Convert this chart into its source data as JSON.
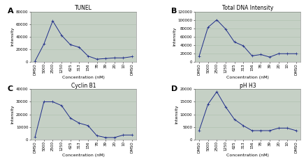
{
  "x_labels": [
    "DMSO",
    "5000",
    "2500",
    "1250",
    "625",
    "313",
    "156",
    "78",
    "39",
    "20",
    "10",
    "DMSO"
  ],
  "x_positions": [
    0,
    1,
    2,
    3,
    4,
    5,
    6,
    7,
    8,
    9,
    10,
    11
  ],
  "tunel": [
    1000,
    28000,
    65000,
    42000,
    27000,
    23000,
    9000,
    4000,
    5000,
    6000,
    6000,
    8000
  ],
  "total_dna": [
    13000,
    82000,
    100000,
    78000,
    47000,
    38000,
    14000,
    17000,
    11000,
    19000,
    19000,
    19000
  ],
  "cyclin_b1": [
    2000,
    30000,
    30000,
    27000,
    17000,
    13000,
    11000,
    3000,
    1500,
    1500,
    3500,
    3500
  ],
  "phh3": [
    3500,
    14000,
    19000,
    13000,
    8000,
    5500,
    3500,
    3500,
    3500,
    4500,
    4500,
    3500
  ],
  "titles": [
    "TUNEL",
    "Total DNA Intensity",
    "Cyclin B1",
    "pH H3"
  ],
  "panel_labels": [
    "A",
    "B",
    "C",
    "D"
  ],
  "ylabel": "Intensity",
  "xlabel": "Concentration (nM)",
  "line_color": "#1f2d8a",
  "marker": "+",
  "bg_color": "#c5d0c5",
  "grid_color": "#adbfad",
  "title_fontsize": 5.5,
  "label_fontsize": 4.5,
  "tick_fontsize": 4.0,
  "panel_label_fontsize": 8,
  "ylims": {
    "tunel": [
      0,
      80000
    ],
    "total_dna": [
      0,
      120000
    ],
    "cyclin_b1": [
      0,
      40000
    ],
    "phh3": [
      0,
      20000
    ]
  },
  "yticks": {
    "tunel": [
      0,
      20000,
      40000,
      60000,
      80000
    ],
    "total_dna": [
      0,
      20000,
      40000,
      60000,
      80000,
      100000,
      120000
    ],
    "cyclin_b1": [
      0,
      10000,
      20000,
      30000,
      40000
    ],
    "phh3": [
      0,
      5000,
      10000,
      15000,
      20000
    ]
  },
  "ytick_labels": {
    "tunel": [
      "0",
      "20000",
      "40000",
      "60000",
      "80000"
    ],
    "total_dna": [
      "0",
      "20000",
      "40000",
      "60000",
      "80000",
      "100000",
      "120000"
    ],
    "cyclin_b1": [
      "0",
      "10000",
      "20000",
      "30000",
      "40000"
    ],
    "phh3": [
      "0",
      "5000",
      "10000",
      "15000",
      "20000"
    ]
  }
}
